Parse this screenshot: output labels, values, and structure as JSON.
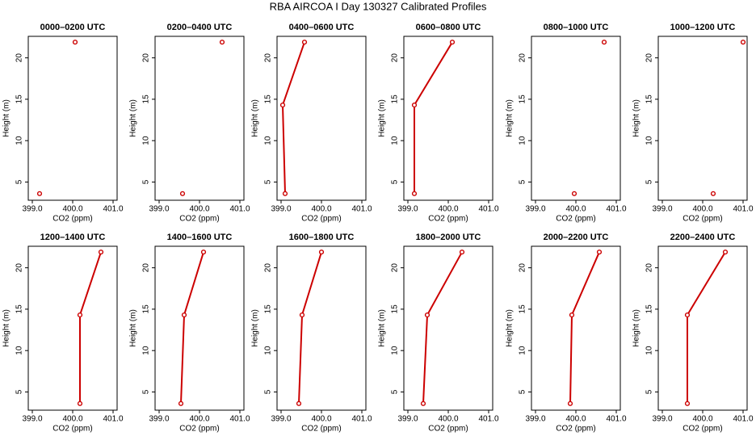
{
  "title": "RBA AIRCOA I  Day 130327  Calibrated Profiles",
  "chart_data": [
    {
      "type": "line",
      "title": "0000–0200 UTC",
      "xlabel": "CO2 (ppm)",
      "ylabel": "Height (m)",
      "color": "#cc0000",
      "x": [
        399.18,
        null,
        400.06
      ],
      "values": [
        3.6,
        null,
        21.9
      ],
      "xlim": [
        398.9,
        401.1
      ],
      "ylim": [
        2.8,
        22.6
      ],
      "xticks": [
        {
          "value": 399,
          "label": "399.0"
        },
        {
          "value": 400,
          "label": "400.0"
        },
        {
          "value": 401,
          "label": "401.0"
        }
      ],
      "yticks": [
        5,
        10,
        15,
        20
      ]
    },
    {
      "type": "line",
      "title": "0200–0400 UTC",
      "xlabel": "CO2 (ppm)",
      "ylabel": "Height (m)",
      "color": "#cc0000",
      "x": [
        399.58,
        null,
        400.56
      ],
      "values": [
        3.6,
        null,
        21.9
      ],
      "xlim": [
        398.9,
        401.1
      ],
      "ylim": [
        2.8,
        22.6
      ],
      "xticks": [
        {
          "value": 399,
          "label": "399.0"
        },
        {
          "value": 400,
          "label": "400.0"
        },
        {
          "value": 401,
          "label": "401.0"
        }
      ],
      "yticks": [
        5,
        10,
        15,
        20
      ]
    },
    {
      "type": "line",
      "title": "0400–0600 UTC",
      "xlabel": "CO2 (ppm)",
      "ylabel": "Height (m)",
      "color": "#cc0000",
      "x": [
        399.1,
        399.04,
        399.58
      ],
      "values": [
        3.6,
        14.3,
        21.9
      ],
      "xlim": [
        398.9,
        401.1
      ],
      "ylim": [
        2.8,
        22.6
      ],
      "xticks": [
        {
          "value": 399,
          "label": "399.0"
        },
        {
          "value": 400,
          "label": "400.0"
        },
        {
          "value": 401,
          "label": "401.0"
        }
      ],
      "yticks": [
        5,
        10,
        15,
        20
      ]
    },
    {
      "type": "line",
      "title": "0600–0800 UTC",
      "xlabel": "CO2 (ppm)",
      "ylabel": "Height (m)",
      "color": "#cc0000",
      "x": [
        399.16,
        399.16,
        400.1
      ],
      "values": [
        3.6,
        14.3,
        21.9
      ],
      "xlim": [
        398.9,
        401.1
      ],
      "ylim": [
        2.8,
        22.6
      ],
      "xticks": [
        {
          "value": 399,
          "label": "399.0"
        },
        {
          "value": 400,
          "label": "400.0"
        },
        {
          "value": 401,
          "label": "401.0"
        }
      ],
      "yticks": [
        5,
        10,
        15,
        20
      ]
    },
    {
      "type": "line",
      "title": "0800–1000 UTC",
      "xlabel": "CO2 (ppm)",
      "ylabel": "Height (m)",
      "color": "#cc0000",
      "x": [
        399.96,
        null,
        400.7
      ],
      "values": [
        3.6,
        null,
        21.9
      ],
      "xlim": [
        398.9,
        401.1
      ],
      "ylim": [
        2.8,
        22.6
      ],
      "xticks": [
        {
          "value": 399,
          "label": "399.0"
        },
        {
          "value": 400,
          "label": "400.0"
        },
        {
          "value": 401,
          "label": "401.0"
        }
      ],
      "yticks": [
        5,
        10,
        15,
        20
      ]
    },
    {
      "type": "line",
      "title": "1000–1200 UTC",
      "xlabel": "CO2 (ppm)",
      "ylabel": "Height (m)",
      "color": "#cc0000",
      "x": [
        400.26,
        null,
        401.0
      ],
      "values": [
        3.6,
        null,
        21.9
      ],
      "xlim": [
        398.9,
        401.1
      ],
      "ylim": [
        2.8,
        22.6
      ],
      "xticks": [
        {
          "value": 399,
          "label": "399.0"
        },
        {
          "value": 400,
          "label": "400.0"
        },
        {
          "value": 401,
          "label": "401.0"
        }
      ],
      "yticks": [
        5,
        10,
        15,
        20
      ]
    },
    {
      "type": "line",
      "title": "1200–1400 UTC",
      "xlabel": "CO2 (ppm)",
      "ylabel": "Height (m)",
      "color": "#cc0000",
      "x": [
        400.18,
        400.18,
        400.7
      ],
      "values": [
        3.6,
        14.3,
        21.9
      ],
      "xlim": [
        398.9,
        401.1
      ],
      "ylim": [
        2.8,
        22.6
      ],
      "xticks": [
        {
          "value": 399,
          "label": "399.0"
        },
        {
          "value": 400,
          "label": "400.0"
        },
        {
          "value": 401,
          "label": "401.0"
        }
      ],
      "yticks": [
        5,
        10,
        15,
        20
      ]
    },
    {
      "type": "line",
      "title": "1400–1600 UTC",
      "xlabel": "CO2 (ppm)",
      "ylabel": "Height (m)",
      "color": "#cc0000",
      "x": [
        399.54,
        399.62,
        400.1
      ],
      "values": [
        3.6,
        14.3,
        21.9
      ],
      "xlim": [
        398.9,
        401.1
      ],
      "ylim": [
        2.8,
        22.6
      ],
      "xticks": [
        {
          "value": 399,
          "label": "399.0"
        },
        {
          "value": 400,
          "label": "400.0"
        },
        {
          "value": 401,
          "label": "401.0"
        }
      ],
      "yticks": [
        5,
        10,
        15,
        20
      ]
    },
    {
      "type": "line",
      "title": "1600–1800 UTC",
      "xlabel": "CO2 (ppm)",
      "ylabel": "Height (m)",
      "color": "#cc0000",
      "x": [
        399.44,
        399.52,
        400.0
      ],
      "values": [
        3.6,
        14.3,
        21.9
      ],
      "xlim": [
        398.9,
        401.1
      ],
      "ylim": [
        2.8,
        22.6
      ],
      "xticks": [
        {
          "value": 399,
          "label": "399.0"
        },
        {
          "value": 400,
          "label": "400.0"
        },
        {
          "value": 401,
          "label": "401.0"
        }
      ],
      "yticks": [
        5,
        10,
        15,
        20
      ]
    },
    {
      "type": "line",
      "title": "1800–2000 UTC",
      "xlabel": "CO2 (ppm)",
      "ylabel": "Height (m)",
      "color": "#cc0000",
      "x": [
        399.38,
        399.48,
        400.34
      ],
      "values": [
        3.6,
        14.3,
        21.9
      ],
      "xlim": [
        398.9,
        401.1
      ],
      "ylim": [
        2.8,
        22.6
      ],
      "xticks": [
        {
          "value": 399,
          "label": "399.0"
        },
        {
          "value": 400,
          "label": "400.0"
        },
        {
          "value": 401,
          "label": "401.0"
        }
      ],
      "yticks": [
        5,
        10,
        15,
        20
      ]
    },
    {
      "type": "line",
      "title": "2000–2200 UTC",
      "xlabel": "CO2 (ppm)",
      "ylabel": "Height (m)",
      "color": "#cc0000",
      "x": [
        399.86,
        399.9,
        400.58
      ],
      "values": [
        3.6,
        14.3,
        21.9
      ],
      "xlim": [
        398.9,
        401.1
      ],
      "ylim": [
        2.8,
        22.6
      ],
      "xticks": [
        {
          "value": 399,
          "label": "399.0"
        },
        {
          "value": 400,
          "label": "400.0"
        },
        {
          "value": 401,
          "label": "401.0"
        }
      ],
      "yticks": [
        5,
        10,
        15,
        20
      ]
    },
    {
      "type": "line",
      "title": "2200–2400 UTC",
      "xlabel": "CO2 (ppm)",
      "ylabel": "Height (m)",
      "color": "#cc0000",
      "x": [
        399.62,
        399.62,
        400.56
      ],
      "values": [
        3.6,
        14.3,
        21.9
      ],
      "xlim": [
        398.9,
        401.1
      ],
      "ylim": [
        2.8,
        22.6
      ],
      "xticks": [
        {
          "value": 399,
          "label": "399.0"
        },
        {
          "value": 400,
          "label": "400.0"
        },
        {
          "value": 401,
          "label": "401.0"
        }
      ],
      "yticks": [
        5,
        10,
        15,
        20
      ]
    }
  ]
}
